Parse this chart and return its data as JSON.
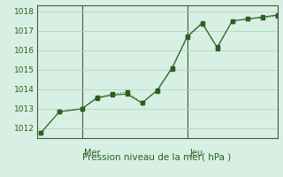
{
  "title": "Pression niveau de la mer( hPa )",
  "bg_color": "#d8f0e4",
  "grid_color": "#b0d8c0",
  "line_color": "#2a6020",
  "axis_color": "#406030",
  "xtick_labels_pos": [
    0.18,
    0.62
  ],
  "xtick_labels_text": [
    "Mer",
    "Jeu"
  ],
  "ylim": [
    1011.5,
    1018.3
  ],
  "yticks": [
    1012,
    1013,
    1014,
    1015,
    1016,
    1017,
    1018
  ],
  "xlim": [
    0,
    32
  ],
  "vline_positions": [
    6,
    20
  ],
  "line1_x": [
    0.5,
    3,
    6,
    8,
    10,
    12,
    14,
    16,
    18,
    20,
    22,
    24,
    26,
    28,
    30,
    32
  ],
  "line1_y": [
    1011.75,
    1012.85,
    1013.0,
    1013.6,
    1013.75,
    1013.85,
    1013.3,
    1013.9,
    1015.05,
    1016.65,
    1017.35,
    1016.1,
    1017.5,
    1017.6,
    1017.65,
    1017.75
  ],
  "line2_x": [
    0.5,
    3,
    6,
    8,
    10,
    12,
    14,
    16,
    18,
    20,
    22,
    24,
    26,
    28,
    30,
    32
  ],
  "line2_y": [
    1011.75,
    1012.85,
    1013.0,
    1013.55,
    1013.7,
    1013.75,
    1013.3,
    1013.95,
    1015.1,
    1016.7,
    1017.4,
    1016.15,
    1017.5,
    1017.6,
    1017.7,
    1017.8
  ],
  "markersize": 2.5
}
